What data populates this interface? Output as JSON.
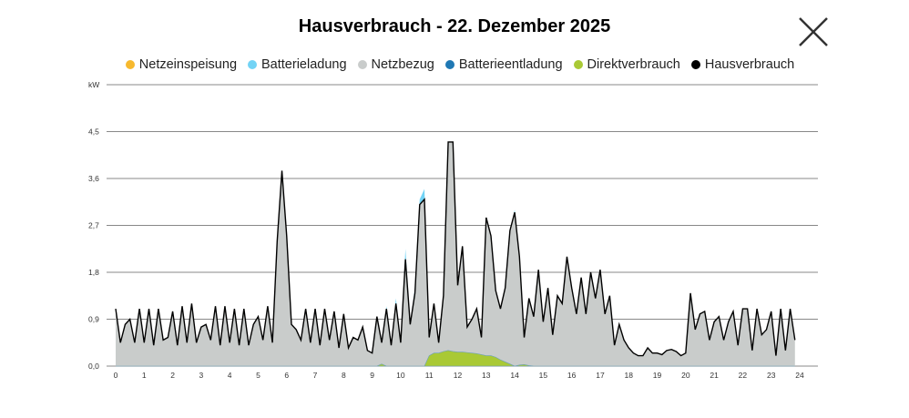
{
  "title": "Hausverbrauch - 22. Dezember 2025",
  "close_icon": "close-x-icon",
  "chart_data": {
    "type": "area",
    "title": "Hausverbrauch - 22. Dezember 2025",
    "ylabel": "kW",
    "ylim": [
      0,
      5.4
    ],
    "yticks": [
      "0,0",
      "0,9",
      "1,8",
      "2,7",
      "3,6",
      "4,5"
    ],
    "xticks": [
      "0",
      "1",
      "2",
      "3",
      "4",
      "5",
      "6",
      "7",
      "8",
      "9",
      "10",
      "11",
      "12",
      "13",
      "14",
      "15",
      "16",
      "17",
      "18",
      "19",
      "20",
      "21",
      "22",
      "23",
      "24"
    ],
    "xlim": [
      0,
      24
    ],
    "grid": true,
    "legend_position": "top",
    "legend": [
      {
        "name": "Netzeinspeisung",
        "color": "#f7b92e"
      },
      {
        "name": "Batterieladung",
        "color": "#72d3f5"
      },
      {
        "name": "Netzbezug",
        "color": "#c9cccb"
      },
      {
        "name": "Batterieentladung",
        "color": "#1f78b4"
      },
      {
        "name": "Direktverbrauch",
        "color": "#a9c935"
      },
      {
        "name": "Hausverbrauch",
        "color": "#000000"
      }
    ],
    "x_hours_step_10min": true,
    "series": [
      {
        "name": "Hausverbrauch",
        "values": [
          1.1,
          0.45,
          0.8,
          0.9,
          0.45,
          1.1,
          0.45,
          1.1,
          0.4,
          1.1,
          0.5,
          0.55,
          1.05,
          0.4,
          1.15,
          0.45,
          1.2,
          0.45,
          0.75,
          0.8,
          0.5,
          1.15,
          0.4,
          1.15,
          0.45,
          1.1,
          0.4,
          1.1,
          0.4,
          0.8,
          0.95,
          0.5,
          1.15,
          0.45,
          2.4,
          3.75,
          2.5,
          0.8,
          0.7,
          0.5,
          1.1,
          0.45,
          1.1,
          0.4,
          1.1,
          0.5,
          1.05,
          0.35,
          1.0,
          0.35,
          0.55,
          0.5,
          0.75,
          0.3,
          0.25,
          0.95,
          0.45,
          1.1,
          0.4,
          1.2,
          0.45,
          2.05,
          0.8,
          1.4,
          3.1,
          3.2,
          0.55,
          1.2,
          0.45,
          1.35,
          4.3,
          4.3,
          1.55,
          2.3,
          0.75,
          0.9,
          1.1,
          0.55,
          2.85,
          2.5,
          1.45,
          1.1,
          1.5,
          2.6,
          2.95,
          2.1,
          0.55,
          1.3,
          0.95,
          1.85,
          0.85,
          1.5,
          0.6,
          1.35,
          1.2,
          2.1,
          1.5,
          1.0,
          1.7,
          1.0,
          1.8,
          1.3,
          1.85,
          1.0,
          1.35,
          0.4,
          0.8,
          0.5,
          0.35,
          0.25,
          0.2,
          0.2,
          0.35,
          0.25,
          0.25,
          0.22,
          0.3,
          0.32,
          0.28,
          0.2,
          0.25,
          1.4,
          0.7,
          1.0,
          1.05,
          0.5,
          0.85,
          0.95,
          0.5,
          0.85,
          1.05,
          0.4,
          1.1,
          1.1,
          0.3,
          1.1,
          0.6,
          0.7,
          1.05,
          0.2,
          1.1,
          0.3,
          1.1,
          0.5
        ]
      },
      {
        "name": "Direktverbrauch",
        "values": [
          0,
          0,
          0,
          0,
          0,
          0,
          0,
          0,
          0,
          0,
          0,
          0,
          0,
          0,
          0,
          0,
          0,
          0,
          0,
          0,
          0,
          0,
          0,
          0,
          0,
          0,
          0,
          0,
          0,
          0,
          0,
          0,
          0,
          0,
          0,
          0,
          0,
          0,
          0,
          0,
          0,
          0,
          0,
          0,
          0,
          0,
          0,
          0,
          0,
          0,
          0,
          0,
          0,
          0,
          0,
          0,
          0.04,
          0,
          0,
          0,
          0,
          0,
          0,
          0,
          0,
          0,
          0.2,
          0.25,
          0.25,
          0.28,
          0.3,
          0.28,
          0.27,
          0.27,
          0.26,
          0.25,
          0.24,
          0.22,
          0.2,
          0.2,
          0.17,
          0.12,
          0.08,
          0.04,
          0,
          0.02,
          0.03,
          0.01,
          0,
          0,
          0,
          0,
          0,
          0,
          0,
          0,
          0,
          0,
          0,
          0,
          0,
          0,
          0,
          0,
          0,
          0,
          0,
          0,
          0,
          0,
          0,
          0,
          0,
          0,
          0,
          0,
          0,
          0,
          0,
          0,
          0,
          0,
          0,
          0,
          0,
          0,
          0,
          0,
          0,
          0,
          0,
          0,
          0,
          0,
          0,
          0,
          0,
          0,
          0,
          0,
          0,
          0,
          0,
          0
        ]
      },
      {
        "name": "Batterieladung",
        "values": [
          0,
          0,
          0,
          0,
          0,
          0,
          0,
          0,
          0,
          0,
          0,
          0,
          0,
          0,
          0,
          0,
          0,
          0,
          0,
          0,
          0,
          0,
          0,
          0,
          0,
          0,
          0,
          0,
          0,
          0,
          0,
          0,
          0,
          0,
          0,
          0,
          0,
          0,
          0,
          0,
          0,
          0,
          0,
          0,
          0,
          0,
          0,
          0,
          0,
          0,
          0,
          0,
          0,
          0,
          0,
          0,
          0,
          0.05,
          0,
          0.1,
          0,
          0.2,
          0,
          0.1,
          0.1,
          0.2,
          0,
          0,
          0,
          0,
          0,
          0,
          0,
          0,
          0,
          0,
          0,
          0,
          0,
          0,
          0,
          0,
          0,
          0,
          0.05,
          0,
          0,
          0,
          0,
          0,
          0,
          0,
          0,
          0,
          0,
          0,
          0,
          0,
          0,
          0,
          0,
          0,
          0,
          0,
          0,
          0,
          0,
          0,
          0,
          0,
          0,
          0,
          0,
          0,
          0,
          0,
          0,
          0,
          0,
          0,
          0,
          0,
          0,
          0,
          0,
          0,
          0,
          0,
          0,
          0,
          0,
          0,
          0,
          0,
          0,
          0,
          0,
          0,
          0,
          0,
          0,
          0,
          0,
          0
        ]
      }
    ]
  }
}
